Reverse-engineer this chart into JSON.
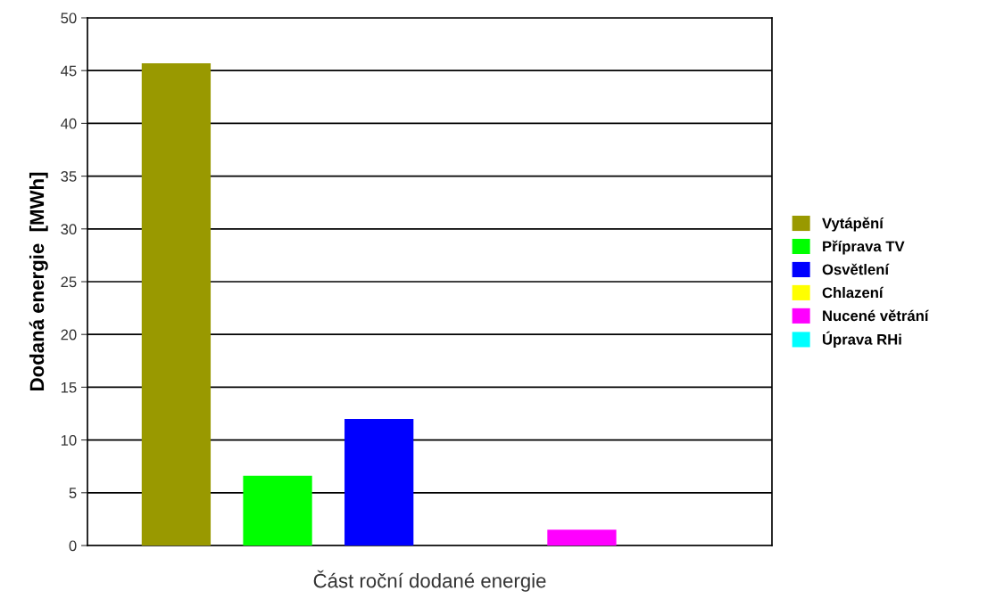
{
  "chart_data": {
    "type": "bar",
    "xlabel": "Část roční dodané energie",
    "ylabel": "Dodaná energie  [MWh]",
    "categories": [
      null
    ],
    "series": [
      {
        "name": "Vytápění",
        "color": "#999900",
        "values": [
          45.7
        ]
      },
      {
        "name": "Příprava TV",
        "color": "#00ff00",
        "values": [
          6.6
        ]
      },
      {
        "name": "Osvětlení",
        "color": "#0000ff",
        "values": [
          12.0
        ]
      },
      {
        "name": "Chlazení",
        "color": "#ffff00",
        "values": [
          0
        ]
      },
      {
        "name": "Nucené větrání",
        "color": "#ff00ff",
        "values": [
          1.5
        ]
      },
      {
        "name": "Úprava RHi",
        "color": "#00ffff",
        "values": [
          0
        ]
      }
    ],
    "ylim": [
      0,
      50
    ],
    "yticks": [
      0,
      5,
      10,
      15,
      20,
      25,
      30,
      35,
      40,
      45,
      50
    ],
    "grid": "y",
    "legend": "right",
    "tick_labels": "y"
  }
}
